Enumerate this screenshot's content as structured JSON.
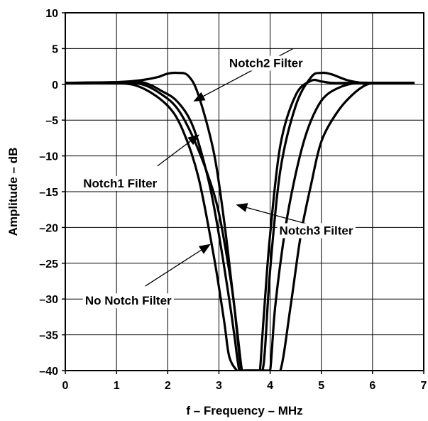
{
  "chart_data": {
    "type": "line",
    "title": "",
    "xlabel": "f – Frequency – MHz",
    "ylabel": "Amplitude – dB",
    "xlim": [
      0,
      7
    ],
    "ylim": [
      -40,
      10
    ],
    "xticks": [
      "0",
      "1",
      "2",
      "3",
      "4",
      "5",
      "6",
      "7"
    ],
    "yticks": [
      "10",
      "5",
      "0",
      "–5",
      "–10",
      "–15",
      "–20",
      "–25",
      "–30",
      "–35",
      "–40"
    ],
    "grid": true,
    "series": [
      {
        "name": "No Notch Filter",
        "x": [
          0.0,
          1.0,
          1.5,
          2.0,
          2.3,
          2.6,
          2.9,
          3.1,
          3.2,
          3.35,
          3.4,
          3.45,
          3.5,
          3.55,
          3.6,
          3.7,
          3.75,
          3.8,
          3.85,
          3.9,
          4.0,
          4.2,
          4.4,
          4.6,
          4.8,
          5.0,
          5.3,
          5.6,
          5.9,
          6.2,
          6.8
        ],
        "y": [
          0.2,
          0.2,
          -0.5,
          -3,
          -6.5,
          -13,
          -24,
          -33,
          -38,
          -40,
          -40,
          -40,
          -40,
          -40,
          -40,
          -40,
          -40,
          -40,
          -40,
          -40,
          -40,
          -40,
          -31,
          -21,
          -14,
          -8,
          -4,
          -1.5,
          0,
          0.2,
          0.2
        ]
      },
      {
        "name": "Notch1 Filter",
        "x": [
          0.0,
          1.0,
          1.5,
          1.9,
          2.2,
          2.5,
          2.8,
          3.0,
          3.2,
          3.3,
          3.4,
          3.5,
          3.55,
          3.6,
          3.7,
          3.75,
          3.8,
          3.85,
          3.9,
          4.0,
          4.1,
          4.3,
          4.5,
          4.7,
          4.9,
          5.1,
          5.4,
          5.7,
          6.0,
          6.8
        ],
        "y": [
          0.2,
          0.3,
          0.3,
          -1,
          -2.5,
          -6,
          -13.5,
          -21,
          -30,
          -35,
          -40,
          -40,
          -40,
          -40,
          -40,
          -40,
          -40,
          -40,
          -40,
          -40,
          -31,
          -20,
          -12.5,
          -7,
          -3.5,
          -1.5,
          -0.3,
          0.2,
          0.2,
          0.2
        ]
      },
      {
        "name": "Notch2 Filter",
        "x": [
          0.0,
          1.0,
          1.5,
          1.8,
          2.0,
          2.2,
          2.4,
          2.6,
          2.9,
          3.1,
          3.25,
          3.35,
          3.45,
          3.5,
          3.6,
          3.7,
          3.75,
          3.8,
          3.85,
          3.9,
          4.0,
          4.2,
          4.5,
          4.8,
          5.0,
          5.2,
          5.5,
          5.8,
          6.0,
          6.8
        ],
        "y": [
          0.2,
          0.3,
          0.6,
          1.0,
          1.5,
          1.6,
          1.2,
          -1.5,
          -9.5,
          -19,
          -28,
          -34,
          -40,
          -40,
          -40,
          -40,
          -40,
          -40,
          -40,
          -37,
          -26,
          -12,
          -3,
          1.0,
          1.6,
          1.4,
          0.6,
          0.2,
          0.2,
          0.2
        ]
      },
      {
        "name": "Notch3 Filter",
        "x": [
          0.0,
          1.0,
          1.5,
          1.9,
          2.2,
          2.5,
          2.8,
          3.0,
          3.2,
          3.3,
          3.4,
          3.45,
          3.5,
          3.6,
          3.7,
          3.75,
          3.8,
          3.85,
          3.9,
          4.0,
          4.2,
          4.5,
          4.8,
          5.0,
          5.2,
          5.5,
          5.8,
          6.0,
          6.8
        ],
        "y": [
          0.2,
          0.2,
          0.0,
          -1.5,
          -3.5,
          -7.5,
          -13,
          -18,
          -26,
          -31,
          -38,
          -40,
          -40,
          -40,
          -40,
          -40,
          -40,
          -35,
          -30,
          -21,
          -8.5,
          -1.5,
          0.5,
          0.4,
          0.2,
          0.2,
          0.2,
          0.2,
          0.2
        ]
      }
    ],
    "annotations": [
      {
        "text": "Notch2 Filter",
        "x": 3.2,
        "y": 3.0,
        "point_x": 2.5,
        "point_y": -2.4,
        "anchor": "start",
        "arrow_from_x": 4.45,
        "arrow_from_y": 5.0
      },
      {
        "text": "Notch1 Filter",
        "x": 0.35,
        "y": -13.8,
        "point_x": 2.62,
        "point_y": -7.0,
        "anchor": "start",
        "arrow_from_x": 1.8,
        "arrow_from_y": -11.4
      },
      {
        "text": "Notch3 Filter",
        "x": 4.9,
        "y": -20.4,
        "point_x": 3.33,
        "point_y": -16.8,
        "anchor": "middle",
        "arrow_from_x": 4.77,
        "arrow_from_y": -19.6
      },
      {
        "text": "No Notch Filter",
        "x": 1.23,
        "y": -30.2,
        "point_x": 2.84,
        "point_y": -22.3,
        "anchor": "middle",
        "arrow_from_x": 1.56,
        "arrow_from_y": -28.2
      }
    ]
  }
}
